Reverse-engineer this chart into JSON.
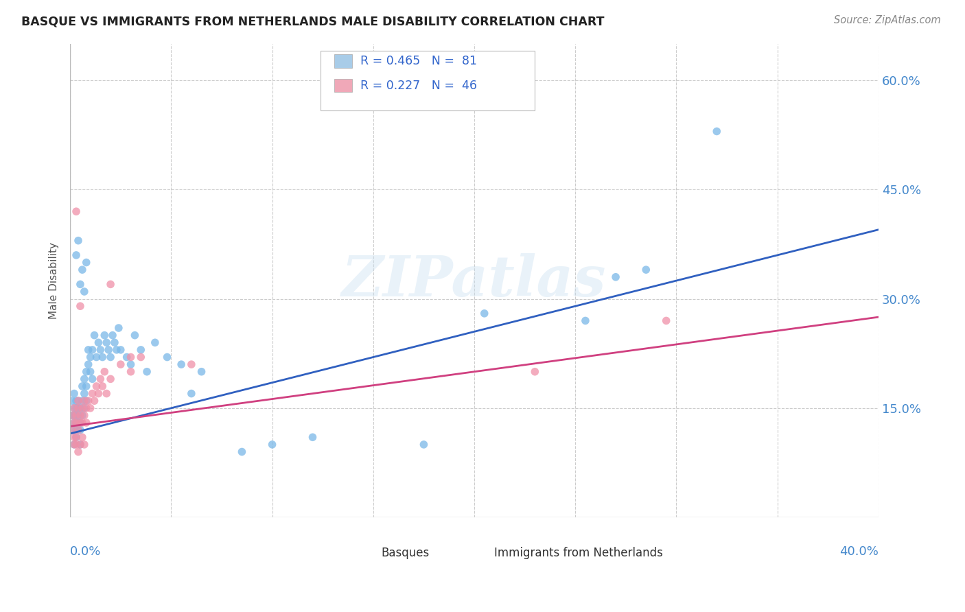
{
  "title": "BASQUE VS IMMIGRANTS FROM NETHERLANDS MALE DISABILITY CORRELATION CHART",
  "source": "Source: ZipAtlas.com",
  "ylabel": "Male Disability",
  "right_yticks": [
    "60.0%",
    "45.0%",
    "30.0%",
    "15.0%"
  ],
  "right_ytick_vals": [
    0.6,
    0.45,
    0.3,
    0.15
  ],
  "series1_name": "Basques",
  "series2_name": "Immigrants from Netherlands",
  "series1_color": "#7ab8e8",
  "series2_color": "#f090a8",
  "series1_line_color": "#3060c0",
  "series2_line_color": "#d04080",
  "watermark": "ZIPatlas",
  "background_color": "#ffffff",
  "xlim": [
    0.0,
    0.4
  ],
  "ylim": [
    0.0,
    0.65
  ],
  "legend1_R": "0.465",
  "legend1_N": "81",
  "legend2_R": "0.227",
  "legend2_N": "46",
  "legend1_color": "#a8cce8",
  "legend2_color": "#f0a8b8",
  "legend_text_color": "#3366cc",
  "title_color": "#222222",
  "source_color": "#888888",
  "ylabel_color": "#555555",
  "grid_color": "#cccccc",
  "axis_label_color": "#4488cc",
  "s1_line_start_y": 0.115,
  "s1_line_end_y": 0.395,
  "s2_line_start_y": 0.125,
  "s2_line_end_y": 0.275
}
